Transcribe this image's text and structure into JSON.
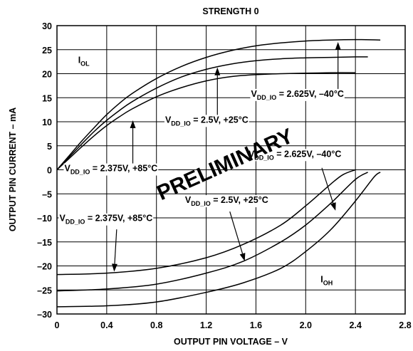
{
  "chart_data": {
    "type": "line",
    "title": "STRENGTH 0",
    "xlabel": "OUTPUT PIN VOLTAGE – V",
    "ylabel": "OUTPUT PIN CURRENT – mA",
    "xlim": [
      0,
      2.8
    ],
    "ylim": [
      -30,
      30
    ],
    "xticks": [
      0,
      0.4,
      0.8,
      1.2,
      1.6,
      2.0,
      2.4,
      2.8
    ],
    "xtick_labels": [
      "0",
      "0.4",
      "0.8",
      "1.2",
      "1.6",
      "2.0",
      "2.4",
      "2.8"
    ],
    "yticks": [
      -30,
      -25,
      -20,
      -15,
      -10,
      -5,
      0,
      5,
      10,
      15,
      20,
      25,
      30
    ],
    "ytick_labels": [
      "–30",
      "–25",
      "–20",
      "–15",
      "–10",
      "–5",
      "0",
      "5",
      "10",
      "15",
      "20",
      "25",
      "30"
    ],
    "grid": true,
    "series": [
      {
        "x": [
          0,
          0.1,
          0.2,
          0.3,
          0.4,
          0.5,
          0.6,
          0.8,
          1.0,
          1.2,
          1.4,
          1.6,
          1.8,
          2.0,
          2.2,
          2.4,
          2.6
        ],
        "y": [
          0,
          3.0,
          6.0,
          8.8,
          11.5,
          13.8,
          15.8,
          19.0,
          21.5,
          23.4,
          24.8,
          25.8,
          26.4,
          26.8,
          27.0,
          27.1,
          27.0
        ]
      },
      {
        "x": [
          0,
          0.1,
          0.2,
          0.3,
          0.4,
          0.5,
          0.6,
          0.8,
          1.0,
          1.2,
          1.4,
          1.6,
          1.8,
          2.0,
          2.2,
          2.4,
          2.5
        ],
        "y": [
          0,
          2.7,
          5.4,
          8.0,
          10.3,
          12.3,
          14.1,
          17.0,
          19.3,
          20.9,
          22.0,
          22.7,
          23.1,
          23.3,
          23.4,
          23.5,
          23.5
        ]
      },
      {
        "x": [
          0,
          0.1,
          0.2,
          0.3,
          0.4,
          0.5,
          0.6,
          0.8,
          1.0,
          1.2,
          1.4,
          1.6,
          1.8,
          2.0,
          2.2,
          2.4
        ],
        "y": [
          0,
          2.4,
          4.8,
          7.1,
          9.2,
          11.0,
          12.6,
          15.2,
          17.1,
          18.5,
          19.4,
          19.8,
          20.0,
          20.1,
          20.2,
          20.2
        ]
      },
      {
        "x": [
          0,
          0.4,
          0.8,
          1.2,
          1.5,
          1.8,
          2.0,
          2.2,
          2.4,
          2.55,
          2.6
        ],
        "y": [
          -28.5,
          -28.3,
          -27.5,
          -25.5,
          -23.5,
          -20.5,
          -17.0,
          -12.5,
          -6.5,
          -1.5,
          -0.5
        ]
      },
      {
        "x": [
          0,
          0.4,
          0.8,
          1.2,
          1.5,
          1.8,
          2.0,
          2.2,
          2.4,
          2.5
        ],
        "y": [
          -25.2,
          -24.8,
          -23.8,
          -21.5,
          -19.0,
          -15.0,
          -11.5,
          -7.0,
          -2.0,
          -0.5
        ]
      },
      {
        "x": [
          0,
          0.4,
          0.8,
          1.2,
          1.5,
          1.8,
          2.0,
          2.2,
          2.3,
          2.4
        ],
        "y": [
          -21.8,
          -21.5,
          -20.5,
          -18.3,
          -15.5,
          -11.5,
          -7.5,
          -3.0,
          -1.0,
          0
        ]
      }
    ],
    "annotations": [
      {
        "main": "I",
        "sub": "OL",
        "rest": "",
        "x": 0.17,
        "y": 22.2
      },
      {
        "main": "I",
        "sub": "OH",
        "rest": "",
        "x": 2.12,
        "y": -23.4
      },
      {
        "main": "V",
        "sub": "DD_IO",
        "rest": " = 2.625V, –40°C",
        "x": 1.56,
        "y": 15.2,
        "bg": true
      },
      {
        "main": "V",
        "sub": "DD_IO",
        "rest": " = 2.5V, +25°C",
        "x": 0.87,
        "y": 9.8,
        "bg": true
      },
      {
        "main": "V",
        "sub": "DD_IO",
        "rest": " = 2.375V, +85°C",
        "x": 0.06,
        "y": -0.3,
        "bg": true
      },
      {
        "main": "V",
        "sub": "DD_IO",
        "rest": " = 2.625V, –40°C",
        "x": 1.54,
        "y": 2.7,
        "bg": true
      },
      {
        "main": "V",
        "sub": "DD_IO",
        "rest": " = 2.5V, +25°C",
        "x": 1.03,
        "y": -6.9,
        "bg": true
      },
      {
        "main": "V",
        "sub": "DD_IO",
        "rest": " = 2.375V, +85°C",
        "x": 0.02,
        "y": -10.7,
        "bg": true
      }
    ],
    "arrows": [
      {
        "from": [
          2.26,
          16.5
        ],
        "to": [
          2.26,
          26.6
        ]
      },
      {
        "from": [
          1.29,
          11.0
        ],
        "to": [
          1.29,
          21.3
        ]
      },
      {
        "from": [
          0.61,
          1.0
        ],
        "to": [
          0.61,
          10.3
        ]
      },
      {
        "from": [
          2.13,
          0.4
        ],
        "to": [
          2.24,
          -8.5
        ]
      },
      {
        "from": [
          1.39,
          -8.7
        ],
        "to": [
          1.51,
          -19.0
        ]
      },
      {
        "from": [
          0.48,
          -12.4
        ],
        "to": [
          0.46,
          -21.2
        ]
      }
    ],
    "watermark": "PRELIMINARY"
  }
}
